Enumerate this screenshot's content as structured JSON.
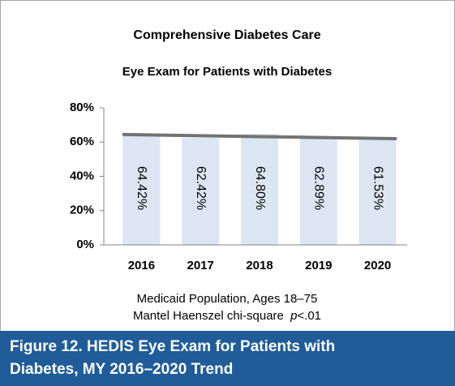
{
  "chart_data": {
    "type": "bar",
    "title": "Comprehensive Diabetes Care",
    "subtitle": "Eye Exam for Patients with Diabetes",
    "categories": [
      "2016",
      "2017",
      "2018",
      "2019",
      "2020"
    ],
    "values": [
      64.42,
      62.42,
      64.8,
      62.89,
      61.53
    ],
    "value_labels": [
      "64.42%",
      "62.42%",
      "64.80%",
      "62.89%",
      "61.53%"
    ],
    "color": "#dce6f2",
    "trendline": true,
    "trendline_color": "#737373",
    "ylim": [
      0,
      80
    ],
    "yticks": [
      {
        "value": 0,
        "label": "0%"
      },
      {
        "value": 20,
        "label": "20%"
      },
      {
        "value": 40,
        "label": "40%"
      },
      {
        "value": 60,
        "label": "60%"
      },
      {
        "value": 80,
        "label": "80%"
      }
    ],
    "notes": [
      "Medicaid Population, Ages 18–75",
      [
        "Mantel Haenszel chi-square",
        "p",
        "<.01"
      ]
    ],
    "caption": [
      "Figure 12. HEDIS Eye Exam for Patients with",
      "Diabetes, MY 2016–2020 Trend"
    ]
  }
}
